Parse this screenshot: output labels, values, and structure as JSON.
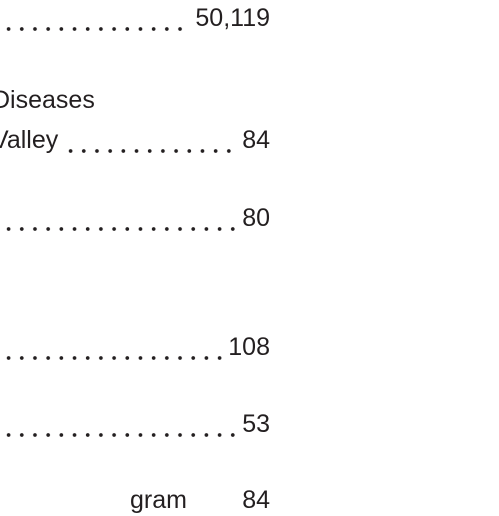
{
  "entries": [
    {
      "page": "50,119"
    },
    {
      "lines": [
        "Diseases",
        "Valley"
      ],
      "page": "84"
    },
    {
      "page": "80"
    },
    {
      "page": "108"
    },
    {
      "page": "53"
    },
    {
      "lines": [
        "gram"
      ],
      "page": "84"
    }
  ]
}
